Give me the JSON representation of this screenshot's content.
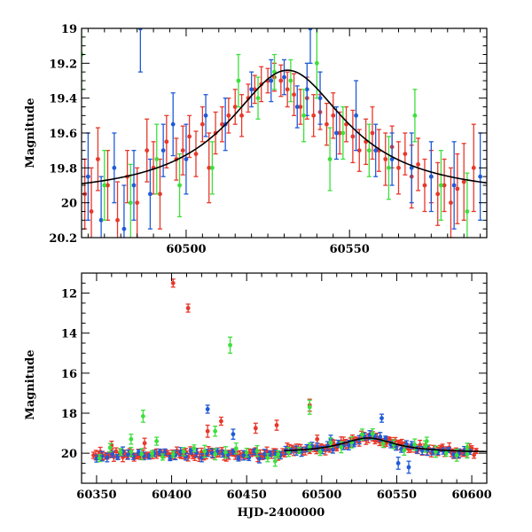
{
  "chart_data": [
    {
      "type": "scatter",
      "title": "",
      "xlabel": "",
      "ylabel": "Magnitude",
      "xlim": [
        60468,
        60592
      ],
      "ylim": [
        20.2,
        19.0
      ],
      "y_inverted": true,
      "grid": false,
      "xticks": [
        60500,
        60550
      ],
      "xtick_labels": [
        "60500",
        "60550"
      ],
      "yticks": [
        19,
        19.2,
        19.4,
        19.6,
        19.8,
        20,
        20.2
      ],
      "ytick_labels": [
        "19",
        "19.2",
        "19.4",
        "19.6",
        "19.8",
        "20",
        "20.2"
      ],
      "fit_curve": {
        "color": "#000000",
        "peak_x": 60531,
        "peak_mag": 19.24,
        "base_mag": 19.97,
        "width_days": 22
      },
      "series": [
        {
          "color": "#e8382a",
          "x": [
            60469,
            60471,
            60473,
            60476,
            60479,
            60482,
            60485,
            60488,
            60490,
            60492,
            60494,
            60497,
            60499,
            60501,
            60503,
            60505,
            60507,
            60509,
            60511,
            60513,
            60515,
            60517,
            60519,
            60521,
            60523,
            60525,
            60527,
            60529,
            60531,
            60533,
            60535,
            60537,
            60539,
            60541,
            60543,
            60545,
            60547,
            60549,
            60551,
            60553,
            60555,
            60557,
            60559,
            60561,
            60563,
            60565,
            60567,
            60569,
            60571,
            60573,
            60575,
            60577,
            60579,
            60581,
            60583,
            60585,
            60588
          ],
          "y": [
            19.95,
            20.05,
            19.75,
            19.9,
            20.1,
            19.85,
            20.0,
            19.7,
            19.8,
            19.95,
            19.65,
            19.75,
            19.7,
            19.62,
            19.72,
            19.55,
            19.8,
            19.6,
            19.55,
            19.5,
            19.45,
            19.5,
            19.4,
            19.35,
            19.32,
            19.3,
            19.28,
            19.3,
            19.35,
            19.38,
            19.45,
            19.4,
            19.5,
            19.48,
            19.55,
            19.5,
            19.6,
            19.55,
            19.62,
            19.7,
            19.65,
            19.6,
            19.7,
            19.75,
            19.68,
            19.8,
            19.72,
            19.85,
            19.78,
            19.9,
            19.85,
            19.95,
            19.9,
            20.0,
            19.92,
            19.88,
            19.8
          ],
          "err": [
            0.2,
            0.25,
            0.18,
            0.2,
            0.22,
            0.15,
            0.2,
            0.18,
            0.15,
            0.2,
            0.15,
            0.12,
            0.14,
            0.12,
            0.13,
            0.1,
            0.2,
            0.12,
            0.1,
            0.1,
            0.1,
            0.12,
            0.08,
            0.08,
            0.1,
            0.07,
            0.08,
            0.09,
            0.1,
            0.12,
            0.1,
            0.12,
            0.12,
            0.1,
            0.12,
            0.13,
            0.12,
            0.1,
            0.15,
            0.12,
            0.13,
            0.15,
            0.12,
            0.15,
            0.12,
            0.15,
            0.12,
            0.18,
            0.15,
            0.15,
            0.15,
            0.18,
            0.15,
            0.2,
            0.2,
            0.22,
            0.25
          ]
        },
        {
          "color": "#1f5bd8",
          "x": [
            60470,
            60474,
            60478,
            60481,
            60484,
            60486,
            60489,
            60493,
            60496,
            60500,
            60506,
            60512,
            60520,
            60526,
            60530,
            60534,
            60537,
            60538,
            60541,
            60546,
            60552,
            60558,
            60563,
            60569,
            60575,
            60582,
            60590
          ],
          "y": [
            19.85,
            20.1,
            19.8,
            20.15,
            19.9,
            19.0,
            19.95,
            19.7,
            19.55,
            19.75,
            19.5,
            19.55,
            19.35,
            19.3,
            19.28,
            19.45,
            19.35,
            19.0,
            19.4,
            19.6,
            19.5,
            19.7,
            19.75,
            19.8,
            19.85,
            19.9,
            19.85
          ],
          "err": [
            0.25,
            0.25,
            0.2,
            0.25,
            0.2,
            0.25,
            0.2,
            0.15,
            0.18,
            0.2,
            0.12,
            0.15,
            0.1,
            0.12,
            0.1,
            0.12,
            0.15,
            0.2,
            0.15,
            0.15,
            0.2,
            0.15,
            0.15,
            0.2,
            0.2,
            0.25,
            0.25
          ]
        },
        {
          "color": "#3ce03c",
          "x": [
            60468,
            60475,
            60483,
            60491,
            60498,
            60508,
            60516,
            60522,
            60527,
            60532,
            60536,
            60540,
            60544,
            60548,
            60556,
            60562,
            60570,
            60578,
            60586
          ],
          "y": [
            19.15,
            19.9,
            20.0,
            19.75,
            19.9,
            19.8,
            19.3,
            19.4,
            19.25,
            19.3,
            19.5,
            19.2,
            19.75,
            19.6,
            19.7,
            19.8,
            19.5,
            19.9,
            20.05
          ],
          "err": [
            0.2,
            0.2,
            0.22,
            0.2,
            0.18,
            0.15,
            0.15,
            0.12,
            0.1,
            0.12,
            0.15,
            0.2,
            0.18,
            0.15,
            0.15,
            0.18,
            0.15,
            0.2,
            0.22
          ]
        }
      ]
    },
    {
      "type": "scatter",
      "title": "",
      "xlabel": "HJD-2400000",
      "ylabel": "Magnitude",
      "xlim": [
        60340,
        60610
      ],
      "ylim": [
        21.5,
        11.0
      ],
      "y_inverted": true,
      "grid": false,
      "xticks": [
        60350,
        60400,
        60450,
        60500,
        60550,
        60600
      ],
      "xtick_labels": [
        "60350",
        "60400",
        "60450",
        "60500",
        "60550",
        "60600"
      ],
      "yticks": [
        12,
        14,
        16,
        18,
        20
      ],
      "ytick_labels": [
        "12",
        "14",
        "16",
        "18",
        "20"
      ],
      "fit_curve": {
        "color": "#000000",
        "peak_x": 60531,
        "peak_mag": 19.24,
        "base_mag": 19.97,
        "width_days": 22,
        "from_x": 60475
      },
      "series": [
        {
          "color": "#e8382a",
          "baseline": {
            "from_x": 60348,
            "to_x": 60603,
            "step": 1.5,
            "mag": 20.05,
            "scatter": 0.18,
            "err": 0.2
          },
          "outliers": {
            "x": [
              60401,
              60411,
              60424,
              60433,
              60456,
              60470,
              60492,
              60497,
              60382,
              60360
            ],
            "y": [
              11.5,
              12.75,
              18.9,
              18.4,
              18.75,
              18.6,
              17.6,
              19.3,
              19.5,
              19.6
            ],
            "err": [
              0.2,
              0.2,
              0.3,
              0.2,
              0.25,
              0.25,
              0.3,
              0.2,
              0.25,
              0.2
            ]
          }
        },
        {
          "color": "#1f5bd8",
          "baseline": {
            "from_x": 60350,
            "to_x": 60600,
            "step": 3.5,
            "mag": 20.1,
            "scatter": 0.2,
            "err": 0.2
          },
          "outliers": {
            "x": [
              60424,
              60441,
              60506,
              60540,
              60551,
              60558
            ],
            "y": [
              17.8,
              19.05,
              19.3,
              18.25,
              20.5,
              20.7
            ],
            "err": [
              0.2,
              0.25,
              0.2,
              0.2,
              0.3,
              0.3
            ]
          }
        },
        {
          "color": "#3ce03c",
          "baseline": {
            "from_x": 60352,
            "to_x": 60602,
            "step": 7,
            "mag": 20.0,
            "scatter": 0.28,
            "err": 0.25
          },
          "outliers": {
            "x": [
              60381,
              60439,
              60492,
              60429,
              60373,
              60390,
              60469,
              60570,
              60597
            ],
            "y": [
              18.15,
              14.6,
              17.7,
              18.9,
              19.3,
              19.4,
              20.4,
              19.4,
              19.7
            ],
            "err": [
              0.3,
              0.4,
              0.35,
              0.25,
              0.25,
              0.2,
              0.25,
              0.2,
              0.2
            ]
          }
        }
      ]
    }
  ]
}
